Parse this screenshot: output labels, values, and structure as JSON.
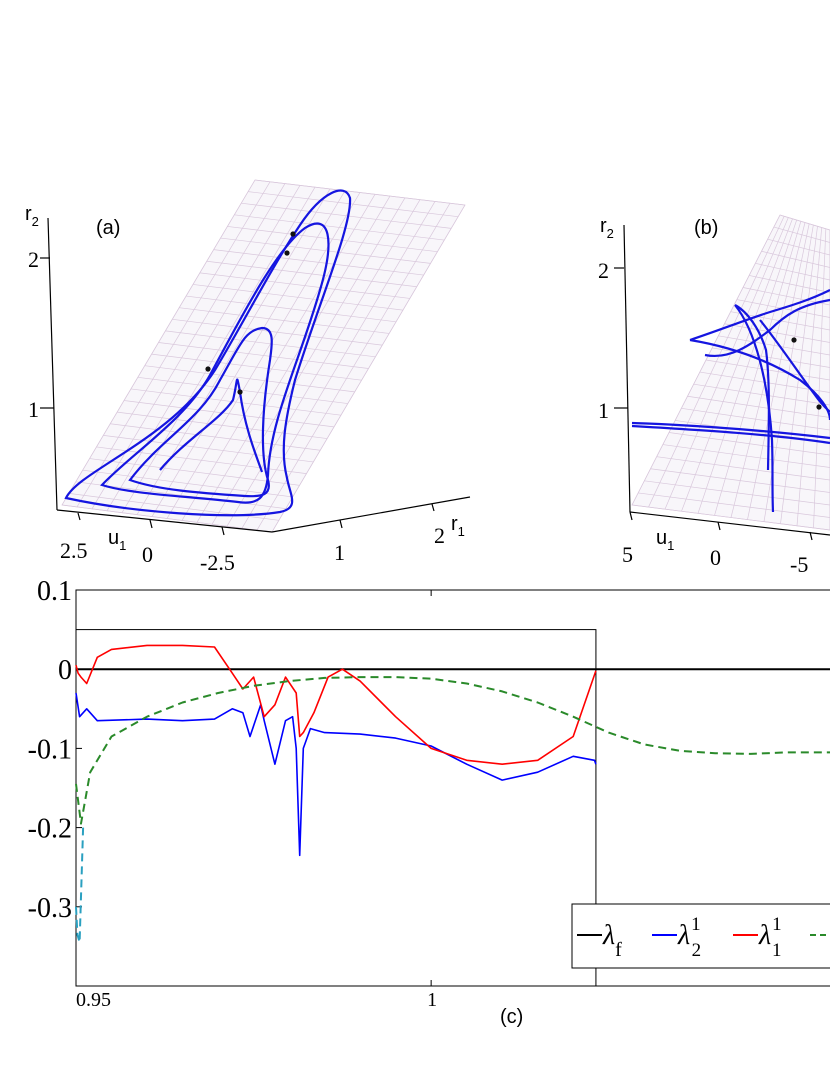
{
  "figure": {
    "panel_a": {
      "label": "(a)",
      "axis_r2": {
        "name": "r",
        "sub": "2",
        "ticks": [
          "2",
          "1"
        ]
      },
      "axis_u1": {
        "name": "u",
        "sub": "1",
        "ticks": [
          "2.5",
          "0",
          "-2.5"
        ]
      },
      "axis_r1": {
        "name": "r",
        "sub": "1",
        "ticks": [
          "1",
          "2"
        ]
      }
    },
    "panel_b": {
      "label": "(b)",
      "axis_r2": {
        "name": "r",
        "sub": "2",
        "ticks": [
          "2",
          "1"
        ]
      },
      "axis_u1": {
        "name": "u",
        "sub": "1",
        "ticks": [
          "5",
          "0",
          "-5"
        ]
      }
    },
    "panel_c_label": "(c)"
  },
  "chart_data": {
    "type": "line",
    "panel": "(c)",
    "xlabel": "",
    "ylabel": "",
    "xlim": [
      0.95,
      1.057
    ],
    "ylim": [
      -0.4,
      0.1
    ],
    "x_ticks": [
      0.95,
      1
    ],
    "x_tick_labels": [
      "0.95",
      "1"
    ],
    "y_ticks": [
      0.1,
      0,
      -0.1,
      -0.2,
      -0.3
    ],
    "y_tick_labels": [
      "0.1",
      "0",
      "-0.1",
      "-0.2",
      "-0.3"
    ],
    "grid": false,
    "legend_position": "bottom-right",
    "colors": {
      "lambda_f": "#000000",
      "lambda_2_1": "#0000ff",
      "lambda_1_1": "#ff0000",
      "lambda_green": "#2a8a2a",
      "lambda_cyan": "#2aa0c0"
    },
    "series": [
      {
        "name": "λ_f",
        "legend": {
          "sym": "λ",
          "sub": "f"
        },
        "x": [
          0.95,
          1.057
        ],
        "values": [
          0,
          0
        ]
      },
      {
        "name": "λ_2^1",
        "legend": {
          "sym": "λ",
          "sub": "2",
          "sup": "1"
        },
        "x": [
          0.95,
          0.9505,
          0.9515,
          0.953,
          0.96,
          0.965,
          0.9695,
          0.972,
          0.9735,
          0.9745,
          0.976,
          0.9765,
          0.978,
          0.9795,
          0.9805,
          0.981,
          0.9815,
          0.982,
          0.983,
          0.985,
          0.99,
          0.995,
          1.0,
          1.005,
          1.01,
          1.015,
          1.02,
          1.023,
          1.0232
        ],
        "values": [
          -0.03,
          -0.06,
          -0.05,
          -0.065,
          -0.063,
          -0.065,
          -0.063,
          -0.05,
          -0.055,
          -0.085,
          -0.045,
          -0.065,
          -0.12,
          -0.065,
          -0.06,
          -0.1,
          -0.235,
          -0.1,
          -0.075,
          -0.08,
          -0.082,
          -0.087,
          -0.097,
          -0.12,
          -0.14,
          -0.13,
          -0.11,
          -0.115,
          -0.12
        ]
      },
      {
        "name": "λ_1^1",
        "legend": {
          "sym": "λ",
          "sub": "1",
          "sup": "1"
        },
        "x": [
          0.95,
          0.9503,
          0.9507,
          0.9515,
          0.953,
          0.955,
          0.96,
          0.965,
          0.9695,
          0.972,
          0.9735,
          0.975,
          0.9765,
          0.978,
          0.9795,
          0.981,
          0.9815,
          0.982,
          0.9835,
          0.9855,
          0.9875,
          0.99,
          0.995,
          1.0,
          1.005,
          1.01,
          1.015,
          1.02,
          1.0232
        ],
        "values": [
          0.005,
          -0.005,
          -0.01,
          -0.018,
          0.015,
          0.025,
          0.03,
          0.03,
          0.028,
          -0.005,
          -0.025,
          -0.01,
          -0.06,
          -0.045,
          -0.01,
          -0.03,
          -0.085,
          -0.08,
          -0.055,
          -0.01,
          0.0,
          -0.015,
          -0.06,
          -0.1,
          -0.115,
          -0.12,
          -0.115,
          -0.085,
          -0.002
        ]
      },
      {
        "name": "λ (dashed)",
        "legend": {
          "sym": "λ",
          "sub": "",
          "sup": "",
          "dashed": true
        },
        "x": [
          0.95,
          0.9507,
          0.952,
          0.955,
          0.96,
          0.965,
          0.97,
          0.975,
          0.98,
          0.985,
          0.99,
          0.995,
          1.0,
          1.005,
          1.01,
          1.015,
          1.02,
          1.025,
          1.03,
          1.035,
          1.04,
          1.045,
          1.05,
          1.057
        ],
        "values": [
          -0.145,
          -0.195,
          -0.13,
          -0.085,
          -0.06,
          -0.042,
          -0.03,
          -0.021,
          -0.015,
          -0.011,
          -0.01,
          -0.01,
          -0.012,
          -0.018,
          -0.028,
          -0.042,
          -0.06,
          -0.08,
          -0.095,
          -0.103,
          -0.106,
          -0.107,
          -0.105,
          -0.105
        ]
      },
      {
        "name": "λ (cyan dashed)",
        "x": [
          0.95,
          0.9502,
          0.9505,
          0.951
        ],
        "values": [
          -0.3,
          -0.335,
          -0.345,
          -0.2
        ]
      }
    ],
    "annotations": [
      {
        "type": "rectangle",
        "x0": 0.95,
        "x1": 1.0232,
        "y0": -0.4,
        "y1": 0.05
      }
    ]
  }
}
